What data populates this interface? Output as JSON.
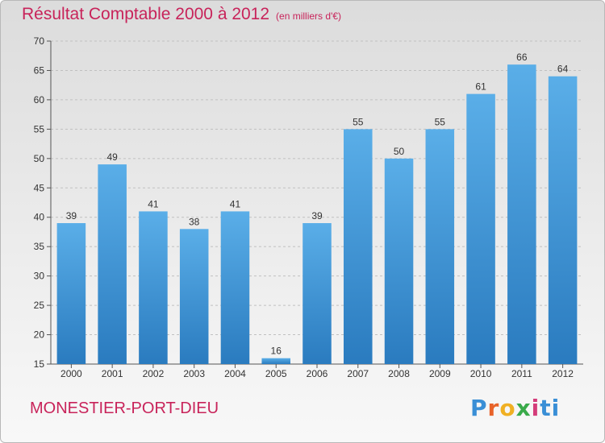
{
  "header": {
    "title": "Résultat Comptable 2000 à 2012",
    "unit": "(en milliers d'€)"
  },
  "footer": {
    "commune": "MONESTIER-PORT-DIEU",
    "logo_letters": [
      "P",
      "r",
      "o",
      "x",
      "i",
      "ti"
    ]
  },
  "colors": {
    "title": "#c8235a",
    "bar_top": "#5aaee8",
    "bar_bottom": "#2a7bbf",
    "grid": "#c0c0c0"
  },
  "chart_data": {
    "type": "bar",
    "title": "Résultat Comptable 2000 à 2012",
    "subtitle": "(en milliers d'€)",
    "categories": [
      "2000",
      "2001",
      "2002",
      "2003",
      "2004",
      "2005",
      "2006",
      "2007",
      "2008",
      "2009",
      "2010",
      "2011",
      "2012"
    ],
    "values": [
      39,
      49,
      41,
      38,
      41,
      16,
      39,
      55,
      50,
      55,
      61,
      66,
      64
    ],
    "ylim": [
      15,
      70
    ],
    "yticks": [
      15,
      20,
      25,
      30,
      35,
      40,
      45,
      50,
      55,
      60,
      65,
      70
    ],
    "grid": true,
    "data_labels": true
  }
}
